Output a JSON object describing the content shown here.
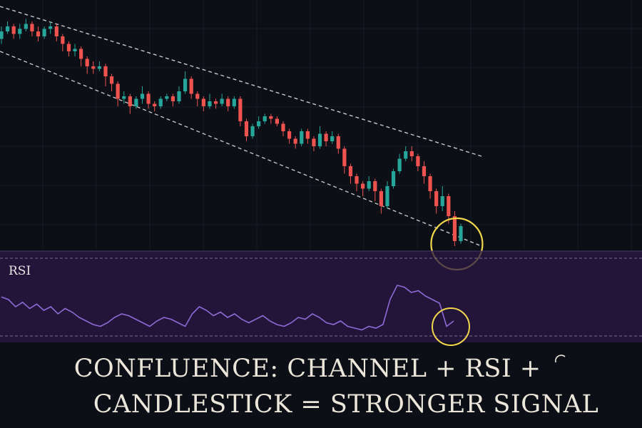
{
  "colors": {
    "background": "#0c0f16",
    "bull": "#26a69a",
    "bear": "#ef5350",
    "channel": "#e8e8e8",
    "rsi_band": "#2a1846",
    "rsi_line": "#8e6ad6",
    "highlight": "#f2d64b"
  },
  "icons": {
    "highlight_circle": "circle-highlight-icon",
    "cursor": "partial-arc-glyph"
  },
  "chart_data": [
    {
      "type": "candlestick",
      "title": "",
      "xlabel": "",
      "ylabel": "",
      "grid": true,
      "ylim": [
        0,
        100
      ],
      "channel": {
        "upper": [
          [
            0,
            98
          ],
          [
            100,
            38
          ]
        ],
        "lower": [
          [
            0,
            80
          ],
          [
            100,
            2
          ]
        ]
      },
      "candles": [
        {
          "o": 85,
          "c": 88,
          "h": 90,
          "l": 83
        },
        {
          "o": 88,
          "c": 90,
          "h": 92,
          "l": 87
        },
        {
          "o": 90,
          "c": 87,
          "h": 91,
          "l": 85
        },
        {
          "o": 87,
          "c": 89,
          "h": 91,
          "l": 85
        },
        {
          "o": 89,
          "c": 91,
          "h": 93,
          "l": 88
        },
        {
          "o": 91,
          "c": 88,
          "h": 92,
          "l": 86
        },
        {
          "o": 88,
          "c": 86,
          "h": 90,
          "l": 84
        },
        {
          "o": 86,
          "c": 89,
          "h": 90,
          "l": 85
        },
        {
          "o": 89,
          "c": 90,
          "h": 92,
          "l": 87
        },
        {
          "o": 90,
          "c": 86,
          "h": 91,
          "l": 84
        },
        {
          "o": 86,
          "c": 83,
          "h": 87,
          "l": 80
        },
        {
          "o": 83,
          "c": 80,
          "h": 84,
          "l": 78
        },
        {
          "o": 80,
          "c": 81,
          "h": 83,
          "l": 78
        },
        {
          "o": 81,
          "c": 77,
          "h": 82,
          "l": 74
        },
        {
          "o": 77,
          "c": 74,
          "h": 78,
          "l": 71
        },
        {
          "o": 74,
          "c": 73,
          "h": 76,
          "l": 71
        },
        {
          "o": 73,
          "c": 74,
          "h": 76,
          "l": 72
        },
        {
          "o": 74,
          "c": 70,
          "h": 75,
          "l": 66
        },
        {
          "o": 70,
          "c": 67,
          "h": 71,
          "l": 64
        },
        {
          "o": 67,
          "c": 61,
          "h": 68,
          "l": 58
        },
        {
          "o": 61,
          "c": 62,
          "h": 64,
          "l": 59
        },
        {
          "o": 62,
          "c": 58,
          "h": 63,
          "l": 55
        },
        {
          "o": 58,
          "c": 61,
          "h": 62,
          "l": 57
        },
        {
          "o": 61,
          "c": 63,
          "h": 66,
          "l": 59
        },
        {
          "o": 63,
          "c": 59,
          "h": 64,
          "l": 57
        },
        {
          "o": 59,
          "c": 58,
          "h": 60,
          "l": 56
        },
        {
          "o": 58,
          "c": 61,
          "h": 62,
          "l": 57
        },
        {
          "o": 61,
          "c": 62,
          "h": 63,
          "l": 60
        },
        {
          "o": 62,
          "c": 60,
          "h": 63,
          "l": 58
        },
        {
          "o": 60,
          "c": 64,
          "h": 66,
          "l": 59
        },
        {
          "o": 64,
          "c": 69,
          "h": 72,
          "l": 63
        },
        {
          "o": 69,
          "c": 63,
          "h": 70,
          "l": 61
        },
        {
          "o": 63,
          "c": 61,
          "h": 64,
          "l": 58
        },
        {
          "o": 61,
          "c": 58,
          "h": 62,
          "l": 56
        },
        {
          "o": 58,
          "c": 60,
          "h": 63,
          "l": 57
        },
        {
          "o": 60,
          "c": 59,
          "h": 61,
          "l": 57
        },
        {
          "o": 59,
          "c": 61,
          "h": 63,
          "l": 58
        },
        {
          "o": 61,
          "c": 58,
          "h": 62,
          "l": 56
        },
        {
          "o": 58,
          "c": 61,
          "h": 62,
          "l": 57
        },
        {
          "o": 61,
          "c": 52,
          "h": 62,
          "l": 50
        },
        {
          "o": 52,
          "c": 46,
          "h": 53,
          "l": 44
        },
        {
          "o": 46,
          "c": 50,
          "h": 51,
          "l": 45
        },
        {
          "o": 50,
          "c": 52,
          "h": 54,
          "l": 49
        },
        {
          "o": 52,
          "c": 54,
          "h": 55,
          "l": 51
        },
        {
          "o": 54,
          "c": 53,
          "h": 55,
          "l": 51
        },
        {
          "o": 53,
          "c": 51,
          "h": 54,
          "l": 50
        },
        {
          "o": 51,
          "c": 48,
          "h": 52,
          "l": 46
        },
        {
          "o": 48,
          "c": 45,
          "h": 49,
          "l": 43
        },
        {
          "o": 45,
          "c": 43,
          "h": 46,
          "l": 41
        },
        {
          "o": 43,
          "c": 48,
          "h": 49,
          "l": 42
        },
        {
          "o": 48,
          "c": 45,
          "h": 49,
          "l": 43
        },
        {
          "o": 45,
          "c": 42,
          "h": 46,
          "l": 40
        },
        {
          "o": 42,
          "c": 47,
          "h": 50,
          "l": 41
        },
        {
          "o": 47,
          "c": 44,
          "h": 48,
          "l": 42
        },
        {
          "o": 44,
          "c": 46,
          "h": 48,
          "l": 43
        },
        {
          "o": 46,
          "c": 41,
          "h": 47,
          "l": 39
        },
        {
          "o": 41,
          "c": 34,
          "h": 42,
          "l": 31
        },
        {
          "o": 34,
          "c": 30,
          "h": 35,
          "l": 27
        },
        {
          "o": 30,
          "c": 27,
          "h": 31,
          "l": 24
        },
        {
          "o": 27,
          "c": 25,
          "h": 28,
          "l": 22
        },
        {
          "o": 25,
          "c": 28,
          "h": 30,
          "l": 24
        },
        {
          "o": 28,
          "c": 24,
          "h": 29,
          "l": 20
        },
        {
          "o": 24,
          "c": 18,
          "h": 25,
          "l": 15
        },
        {
          "o": 18,
          "c": 26,
          "h": 28,
          "l": 17
        },
        {
          "o": 26,
          "c": 32,
          "h": 33,
          "l": 25
        },
        {
          "o": 32,
          "c": 37,
          "h": 39,
          "l": 31
        },
        {
          "o": 37,
          "c": 40,
          "h": 42,
          "l": 36
        },
        {
          "o": 40,
          "c": 38,
          "h": 42,
          "l": 36
        },
        {
          "o": 38,
          "c": 34,
          "h": 39,
          "l": 32
        },
        {
          "o": 34,
          "c": 30,
          "h": 36,
          "l": 27
        },
        {
          "o": 30,
          "c": 24,
          "h": 31,
          "l": 21
        },
        {
          "o": 24,
          "c": 18,
          "h": 25,
          "l": 15
        },
        {
          "o": 18,
          "c": 22,
          "h": 26,
          "l": 16
        },
        {
          "o": 22,
          "c": 14,
          "h": 23,
          "l": 11
        },
        {
          "o": 14,
          "c": 4,
          "h": 16,
          "l": 2
        },
        {
          "o": 4,
          "c": 10,
          "h": 11,
          "l": 3
        }
      ]
    },
    {
      "type": "line",
      "label": "RSI",
      "ylim": [
        0,
        100
      ],
      "levels": [
        70,
        30
      ],
      "values": [
        63,
        60,
        52,
        57,
        50,
        55,
        48,
        52,
        44,
        50,
        46,
        40,
        36,
        32,
        30,
        34,
        40,
        44,
        42,
        38,
        34,
        30,
        36,
        40,
        38,
        34,
        30,
        44,
        52,
        48,
        42,
        46,
        40,
        44,
        38,
        34,
        38,
        42,
        36,
        32,
        30,
        34,
        40,
        38,
        44,
        40,
        34,
        32,
        36,
        30,
        28,
        26,
        30,
        28,
        32,
        60,
        76,
        74,
        68,
        70,
        64,
        60,
        56,
        30,
        36
      ]
    }
  ],
  "caption": {
    "line1": "CONFLUENCE: CHANNEL + RSI +",
    "line2": "CANDLESTICK = STRONGER SIGNAL"
  }
}
